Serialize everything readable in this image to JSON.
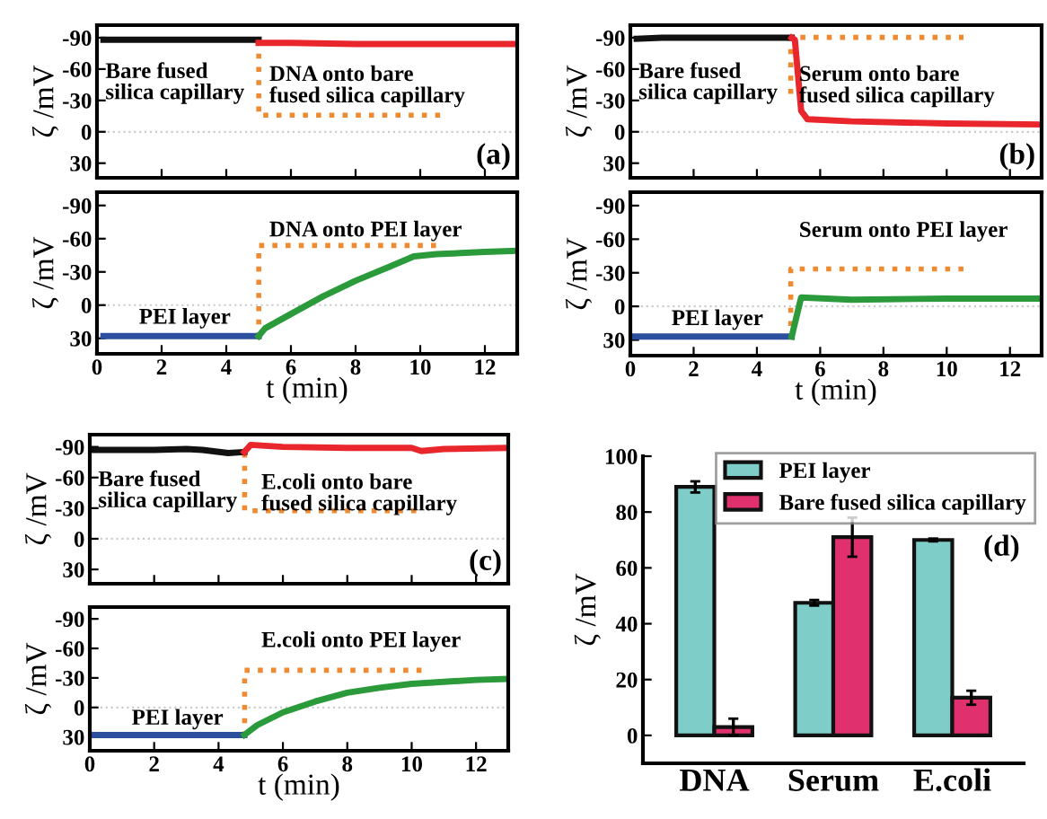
{
  "chart_data": [
    {
      "type": "line",
      "ylabel": "ζ /mV",
      "xlim": [
        0,
        13
      ],
      "ylim": [
        44,
        -102
      ],
      "xticks": [
        0,
        2,
        4,
        6,
        8,
        10,
        12
      ],
      "yticks": [
        -90,
        -60,
        -30,
        0,
        30
      ],
      "tick_labels": "y",
      "annotations": [
        "(a)"
      ],
      "ref_lines": [
        {
          "axis": "y",
          "value": 0,
          "color": "#cccccc",
          "line_style": "dotted"
        }
      ],
      "series": [
        {
          "name": "Bare fused\nsilica capillary",
          "color": "#111111",
          "x": [
            0.2,
            1,
            2,
            3,
            4,
            5
          ],
          "values": [
            -88,
            -88,
            -88,
            -88,
            -88,
            -88
          ]
        },
        {
          "name": "DNA onto bare\nfused silica capillary",
          "color": "#e8262b",
          "x": [
            5,
            6,
            8,
            10,
            12,
            13
          ],
          "values": [
            -85,
            -85,
            -84,
            -84,
            -84,
            -84
          ]
        }
      ]
    },
    {
      "type": "line",
      "ylabel": "ζ /mV",
      "xlabel": "t (min)",
      "xlim": [
        0,
        13
      ],
      "ylim": [
        44,
        -102
      ],
      "xticks": [
        0,
        2,
        4,
        6,
        8,
        10,
        12
      ],
      "yticks": [
        -90,
        -60,
        -30,
        0,
        30
      ],
      "ref_lines": [
        {
          "axis": "y",
          "value": 0,
          "color": "#cccccc",
          "line_style": "dotted"
        }
      ],
      "series": [
        {
          "name": "PEI layer",
          "color": "#2c4f9e",
          "x": [
            0.2,
            1,
            2,
            3,
            4,
            5
          ],
          "values": [
            28,
            28,
            28,
            28,
            28,
            28
          ]
        },
        {
          "name": "DNA onto PEI layer",
          "color": "#2a9a3a",
          "x": [
            5,
            5.2,
            6,
            7,
            8,
            9,
            9.8,
            10.5,
            12,
            13
          ],
          "values": [
            28,
            21,
            8,
            -8,
            -22,
            -34,
            -44,
            -46,
            -48,
            -49
          ]
        }
      ]
    },
    {
      "type": "line",
      "ylabel": "ζ /mV",
      "xlim": [
        0,
        13
      ],
      "ylim": [
        44,
        -102
      ],
      "xticks": [
        0,
        2,
        4,
        6,
        8,
        10,
        12
      ],
      "yticks": [
        -90,
        -60,
        -30,
        0,
        30
      ],
      "tick_labels": "y",
      "annotations": [
        "(b)"
      ],
      "ref_lines": [
        {
          "axis": "y",
          "value": 0,
          "color": "#cccccc",
          "line_style": "dotted"
        }
      ],
      "series": [
        {
          "name": "Bare fused\nsilica capillary",
          "color": "#111111",
          "x": [
            0.2,
            1,
            2,
            3,
            4,
            5.1
          ],
          "values": [
            -89,
            -90,
            -90,
            -90,
            -90,
            -90
          ]
        },
        {
          "name": "Serum onto bare\nfused silica capillary",
          "color": "#e8262b",
          "x": [
            5.1,
            5.2,
            5.4,
            5.6,
            7,
            10,
            13
          ],
          "values": [
            -90,
            -88,
            -20,
            -12,
            -10,
            -8,
            -7
          ]
        }
      ]
    },
    {
      "type": "line",
      "ylabel": "ζ /mV",
      "xlabel": "t (min)",
      "xlim": [
        0,
        13
      ],
      "ylim": [
        44,
        -102
      ],
      "xticks": [
        0,
        2,
        4,
        6,
        8,
        10,
        12
      ],
      "yticks": [
        -90,
        -60,
        -30,
        0,
        30
      ],
      "ref_lines": [
        {
          "axis": "y",
          "value": 0,
          "color": "#cccccc",
          "line_style": "dotted"
        }
      ],
      "series": [
        {
          "name": "PEI layer",
          "color": "#2c4f9e",
          "x": [
            0.1,
            1,
            2,
            3,
            4,
            5.1
          ],
          "values": [
            27,
            27,
            27,
            27,
            27,
            27
          ]
        },
        {
          "name": "Serum onto PEI layer",
          "color": "#2a9a3a",
          "x": [
            5.1,
            5.4,
            7,
            10,
            13
          ],
          "values": [
            27,
            -8,
            -6,
            -7,
            -7
          ]
        }
      ]
    },
    {
      "type": "line",
      "ylabel": "ζ /mV",
      "xlim": [
        0,
        13
      ],
      "ylim": [
        44,
        -102
      ],
      "xticks": [
        0,
        2,
        4,
        6,
        8,
        10,
        12
      ],
      "yticks": [
        -90,
        -60,
        -30,
        0,
        30
      ],
      "tick_labels": "y",
      "annotations": [
        "(c)"
      ],
      "ref_lines": [
        {
          "axis": "y",
          "value": 0,
          "color": "#cccccc",
          "line_style": "dotted"
        }
      ],
      "series": [
        {
          "name": "Bare fused\nsilica capillary",
          "color": "#111111",
          "x": [
            0.1,
            1,
            2,
            3,
            3.5,
            4.3,
            4.8
          ],
          "values": [
            -87,
            -87,
            -87,
            -88,
            -87,
            -84,
            -85
          ]
        },
        {
          "name": "E.coli onto bare\nfused silica capillary",
          "color": "#e8262b",
          "x": [
            4.8,
            5,
            6,
            8,
            10,
            10.3,
            11,
            13
          ],
          "values": [
            -85,
            -92,
            -90,
            -89,
            -89,
            -86,
            -88,
            -89
          ]
        }
      ]
    },
    {
      "type": "line",
      "ylabel": "ζ /mV",
      "xlabel": "t (min)",
      "xlim": [
        0,
        13
      ],
      "ylim": [
        44,
        -102
      ],
      "xticks": [
        0,
        2,
        4,
        6,
        8,
        10,
        12
      ],
      "yticks": [
        -90,
        -60,
        -30,
        0,
        30
      ],
      "ref_lines": [
        {
          "axis": "y",
          "value": 0,
          "color": "#cccccc",
          "line_style": "dotted"
        }
      ],
      "series": [
        {
          "name": "PEI layer",
          "color": "#2c4f9e",
          "x": [
            0.1,
            1,
            2,
            3,
            4,
            4.8
          ],
          "values": [
            28,
            28,
            28,
            28,
            28,
            28
          ]
        },
        {
          "name": "E.coli onto PEI layer",
          "color": "#2a9a3a",
          "x": [
            4.8,
            5.2,
            6,
            7,
            8,
            9,
            10,
            11,
            12,
            13
          ],
          "values": [
            28,
            18,
            5,
            -6,
            -15,
            -20,
            -24,
            -26,
            -28,
            -29
          ]
        }
      ]
    },
    {
      "type": "bar",
      "ylabel": "ζ /mV",
      "categories": [
        "DNA",
        "Serum",
        "E.coli"
      ],
      "ylim": [
        -10,
        100
      ],
      "yticks": [
        0,
        20,
        40,
        60,
        80,
        100
      ],
      "legend": "top right",
      "annotations": [
        "(d)"
      ],
      "series": [
        {
          "name": "PEI layer",
          "color": "#7ecdc9",
          "values": [
            89,
            47.5,
            70
          ],
          "errors": [
            2,
            1,
            0.5
          ]
        },
        {
          "name": "Bare fused silica capillary",
          "color": "#e0306e",
          "values": [
            3,
            71,
            13.5
          ],
          "errors": [
            3,
            7,
            2.5
          ]
        }
      ]
    }
  ]
}
